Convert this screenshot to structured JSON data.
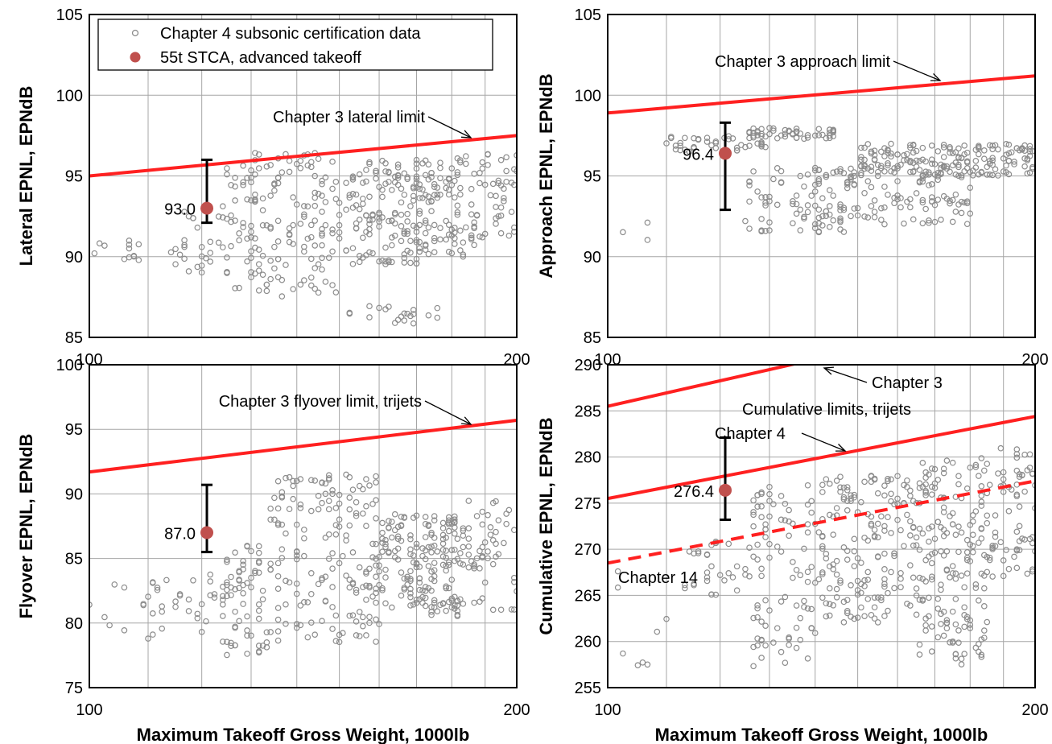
{
  "colors": {
    "limit_line": "#ff2020",
    "cert_marker": "#8c8c8c",
    "stca_marker": "#c0504d",
    "grid": "#a6a6a6",
    "error_bar": "#000000"
  },
  "legend": {
    "cert_label": "Chapter 4 subsonic certification data",
    "stca_label": "55t STCA, advanced takeoff"
  },
  "chart_data": [
    {
      "id": "lateral",
      "type": "scatter",
      "xscale": "log",
      "xlim": [
        100,
        200
      ],
      "ylim": [
        85,
        105
      ],
      "x_ticks": [
        "100",
        "",
        "",
        "",
        "",
        "",
        "",
        "",
        "200"
      ],
      "y_ticks": [
        "85",
        "90",
        "95",
        "100",
        "105"
      ],
      "ylabel": "Lateral EPNL,  EPNdB",
      "xlabel": "",
      "legend_position": "top-left",
      "limit_lines": [
        {
          "label": "Chapter 3 lateral limit",
          "style": "solid",
          "x": [
            100,
            200
          ],
          "y": [
            95.0,
            97.5
          ],
          "arrow_to": [
            154,
            96.9
          ]
        }
      ],
      "stca_point": {
        "x": 121,
        "y": 93.0,
        "err_low": 92.1,
        "err_high": 96.0,
        "label": "93.0"
      },
      "cert_clusters": [
        {
          "x": [
            100,
            110
          ],
          "y": [
            89.5,
            91
          ],
          "n": 12
        },
        {
          "x": [
            112,
            124
          ],
          "y": [
            89,
            93
          ],
          "n": 25
        },
        {
          "x": [
            124,
            133
          ],
          "y": [
            88,
            96
          ],
          "n": 45
        },
        {
          "x": [
            130,
            150
          ],
          "y": [
            87.5,
            96.5
          ],
          "n": 120
        },
        {
          "x": [
            150,
            172
          ],
          "y": [
            89.5,
            96
          ],
          "n": 150
        },
        {
          "x": [
            172,
            188
          ],
          "y": [
            90,
            96.5
          ],
          "n": 90
        },
        {
          "x": [
            188,
            200
          ],
          "y": [
            91,
            96.5
          ],
          "n": 40
        },
        {
          "x": [
            152,
            178
          ],
          "y": [
            85.8,
            87
          ],
          "n": 20
        }
      ]
    },
    {
      "id": "approach",
      "type": "scatter",
      "xscale": "log",
      "xlim": [
        100,
        200
      ],
      "ylim": [
        85,
        105
      ],
      "x_ticks": [
        "100",
        "",
        "",
        "",
        "",
        "",
        "",
        "",
        "200"
      ],
      "y_ticks": [
        "85",
        "90",
        "95",
        "100",
        "105"
      ],
      "ylabel": "Approach EPNL,  EPNdB",
      "xlabel": "",
      "limit_lines": [
        {
          "label": "Chapter 3 approach limit",
          "style": "solid",
          "x": [
            100,
            200
          ],
          "y": [
            98.9,
            101.2
          ],
          "arrow_to": [
            175,
            100.8
          ]
        }
      ],
      "stca_point": {
        "x": 121,
        "y": 96.4,
        "err_low": 92.9,
        "err_high": 98.3,
        "label": "96.4"
      },
      "cert_clusters": [
        {
          "x": [
            100,
            108
          ],
          "y": [
            88.3,
            94.5
          ],
          "n": 3
        },
        {
          "x": [
            110,
            130
          ],
          "y": [
            96.5,
            97.5
          ],
          "n": 40
        },
        {
          "x": [
            125,
            145
          ],
          "y": [
            97.3,
            98
          ],
          "n": 50
        },
        {
          "x": [
            125,
            150
          ],
          "y": [
            91.5,
            95.5
          ],
          "n": 70
        },
        {
          "x": [
            135,
            180
          ],
          "y": [
            92,
            96
          ],
          "n": 120
        },
        {
          "x": [
            150,
            200
          ],
          "y": [
            95,
            97
          ],
          "n": 170
        }
      ]
    },
    {
      "id": "flyover",
      "type": "scatter",
      "xscale": "log",
      "xlim": [
        100,
        200
      ],
      "ylim": [
        75,
        100
      ],
      "x_ticks": [
        "100",
        "",
        "",
        "",
        "",
        "",
        "",
        "",
        "200"
      ],
      "y_ticks": [
        "75",
        "80",
        "85",
        "90",
        "95",
        "100"
      ],
      "ylabel": "Flyover EPNL,  EPNdB",
      "xlabel": "Maximum Takeoff Gross Weight, 1000lb",
      "limit_lines": [
        {
          "label": "Chapter 3 flyover limit, trijets",
          "style": "solid",
          "x": [
            100,
            200
          ],
          "y": [
            91.7,
            95.7
          ],
          "arrow_to": [
            182,
            95.4
          ]
        }
      ],
      "stca_point": {
        "x": 121,
        "y": 87.0,
        "err_low": 85.5,
        "err_high": 90.7,
        "label": "87.0"
      },
      "cert_clusters": [
        {
          "x": [
            100,
            110
          ],
          "y": [
            78.7,
            83
          ],
          "n": 8
        },
        {
          "x": [
            110,
            124
          ],
          "y": [
            78,
            84
          ],
          "n": 30
        },
        {
          "x": [
            124,
            134
          ],
          "y": [
            77.5,
            86
          ],
          "n": 70
        },
        {
          "x": [
            134,
            160
          ],
          "y": [
            78.5,
            91.5
          ],
          "n": 170
        },
        {
          "x": [
            160,
            182
          ],
          "y": [
            80.5,
            88.5
          ],
          "n": 170
        },
        {
          "x": [
            182,
            200
          ],
          "y": [
            81,
            89.5
          ],
          "n": 60
        }
      ]
    },
    {
      "id": "cumulative",
      "type": "scatter",
      "xscale": "log",
      "xlim": [
        100,
        200
      ],
      "ylim": [
        255,
        290
      ],
      "x_ticks": [
        "100",
        "",
        "",
        "",
        "",
        "",
        "",
        "",
        "200"
      ],
      "y_ticks": [
        "255",
        "260",
        "265",
        "270",
        "275",
        "280",
        "285",
        "290"
      ],
      "ylabel": "Cumulative EPNL,  EPNdB",
      "xlabel": "Maximum Takeoff Gross Weight, 1000lb",
      "annotations": [
        "Cumulative limits, trijets"
      ],
      "limit_lines": [
        {
          "label": "Chapter 3",
          "style": "solid",
          "x": [
            100,
            200
          ],
          "y": [
            285.5,
            296.0
          ],
          "arrow_to": [
            145,
            290
          ]
        },
        {
          "label": "Chapter 4",
          "style": "solid",
          "x": [
            100,
            200
          ],
          "y": [
            275.5,
            284.4
          ],
          "arrow_to": [
            154,
            280.8
          ]
        },
        {
          "label": "Chapter 14",
          "style": "dashed",
          "x": [
            100,
            200
          ],
          "y": [
            268.5,
            277.4
          ],
          "arrow_to": null
        }
      ],
      "stca_point": {
        "x": 121,
        "y": 276.4,
        "err_low": 273.2,
        "err_high": 282.1,
        "label": "276.4"
      },
      "cert_clusters": [
        {
          "x": [
            100,
            110
          ],
          "y": [
            256.8,
            269
          ],
          "n": 8
        },
        {
          "x": [
            110,
            126
          ],
          "y": [
            265,
            271
          ],
          "n": 30
        },
        {
          "x": [
            126,
            140
          ],
          "y": [
            257,
            277
          ],
          "n": 90
        },
        {
          "x": [
            140,
            165
          ],
          "y": [
            262,
            278
          ],
          "n": 170
        },
        {
          "x": [
            165,
            185
          ],
          "y": [
            257.5,
            280
          ],
          "n": 170
        },
        {
          "x": [
            185,
            200
          ],
          "y": [
            267,
            281
          ],
          "n": 70
        }
      ]
    }
  ]
}
